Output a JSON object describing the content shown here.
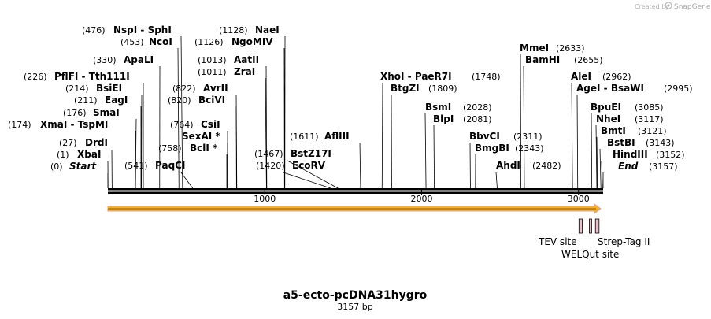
{
  "credit": {
    "prefix": "Created by",
    "brand": "SnapGene"
  },
  "plasmid": {
    "name": "a5-ecto-pcDNA31hygro",
    "length_label": "3157 bp",
    "length": 3157
  },
  "axis": {
    "ticks": [
      1000,
      2000,
      3000
    ]
  },
  "colors": {
    "orf_fill": "#f7b21e",
    "orf_edge": "#e2a1a0",
    "feature_fill": "#e8c0c8"
  },
  "sites": [
    {
      "name": "Start",
      "pos_label": "(0)",
      "pos": 0,
      "italic": true
    },
    {
      "name": "XbaI",
      "pos_label": "(1)",
      "pos": 1
    },
    {
      "name": "DrdI",
      "pos_label": "(27)",
      "pos": 27
    },
    {
      "name": "XmaI  - TspMI",
      "pos_label": "(174)",
      "pos": 174
    },
    {
      "name": "SmaI",
      "pos_label": "(176)",
      "pos": 176
    },
    {
      "name": "EagI",
      "pos_label": "(211)",
      "pos": 211
    },
    {
      "name": "BsiEI",
      "pos_label": "(214)",
      "pos": 214
    },
    {
      "name": "PflFI  - Tth111I",
      "pos_label": "(226)",
      "pos": 226
    },
    {
      "name": "ApaLI",
      "pos_label": "(330)",
      "pos": 330
    },
    {
      "name": "NcoI",
      "pos_label": "(453)",
      "pos": 453
    },
    {
      "name": "NspI  - SphI",
      "pos_label": "(476)",
      "pos": 476
    },
    {
      "name": "PaqCI",
      "pos_label": "(541)",
      "pos": 541,
      "label_pos_left": true
    },
    {
      "name": "BclI *",
      "pos_label": "(758)",
      "pos": 758
    },
    {
      "name": "SexAI *",
      "pos_label": "",
      "pos": 762
    },
    {
      "name": "CsiI",
      "pos_label": "(764)",
      "pos": 764
    },
    {
      "name": "BciVI",
      "pos_label": "(820)",
      "pos": 820
    },
    {
      "name": "AvrII",
      "pos_label": "(822)",
      "pos": 822
    },
    {
      "name": "ZraI",
      "pos_label": "(1011)",
      "pos": 1011
    },
    {
      "name": "AatII",
      "pos_label": "(1013)",
      "pos": 1013
    },
    {
      "name": "NgoMIV",
      "pos_label": "(1126)",
      "pos": 1126
    },
    {
      "name": "NaeI",
      "pos_label": "(1128)",
      "pos": 1128
    },
    {
      "name": "EcoRV",
      "pos_label": "(1420)",
      "pos": 1420
    },
    {
      "name": "BstZ17I",
      "pos_label": "(1467)",
      "pos": 1467
    },
    {
      "name": "AflIII",
      "pos_label": "(1611)",
      "pos": 1611
    },
    {
      "name": "XhoI  - PaeR7I",
      "pos_label": "(1748)",
      "pos": 1748
    },
    {
      "name": "BtgZI",
      "pos_label": "(1809)",
      "pos": 1809
    },
    {
      "name": "BsmI",
      "pos_label": "(2028)",
      "pos": 2028
    },
    {
      "name": "BlpI",
      "pos_label": "(2081)",
      "pos": 2081
    },
    {
      "name": "BbvCI",
      "pos_label": "(2311)",
      "pos": 2311
    },
    {
      "name": "BmgBI",
      "pos_label": "(2343)",
      "pos": 2343
    },
    {
      "name": "AhdI",
      "pos_label": "(2482)",
      "pos": 2482
    },
    {
      "name": "MmeI",
      "pos_label": "(2633)",
      "pos": 2633
    },
    {
      "name": "BamHI",
      "pos_label": "(2655)",
      "pos": 2655
    },
    {
      "name": "AleI",
      "pos_label": "(2962)",
      "pos": 2962
    },
    {
      "name": "AgeI  - BsaWI",
      "pos_label": "(2995)",
      "pos": 2995
    },
    {
      "name": "BpuEI",
      "pos_label": "(3085)",
      "pos": 3085
    },
    {
      "name": "NheI",
      "pos_label": "(3117)",
      "pos": 3117
    },
    {
      "name": "BmtI",
      "pos_label": "(3121)",
      "pos": 3121
    },
    {
      "name": "BstBI",
      "pos_label": "(3143)",
      "pos": 3143
    },
    {
      "name": "HindIII",
      "pos_label": "(3152)",
      "pos": 3152
    },
    {
      "name": "End",
      "pos_label": "(3157)",
      "pos": 3157,
      "italic": true
    }
  ],
  "features": [
    {
      "name": "TEV site",
      "start": 3003,
      "end": 3024
    },
    {
      "name": "WELQut site",
      "start": 3069,
      "end": 3081
    },
    {
      "name": "Strep-Tag II",
      "start": 3108,
      "end": 3131
    }
  ]
}
